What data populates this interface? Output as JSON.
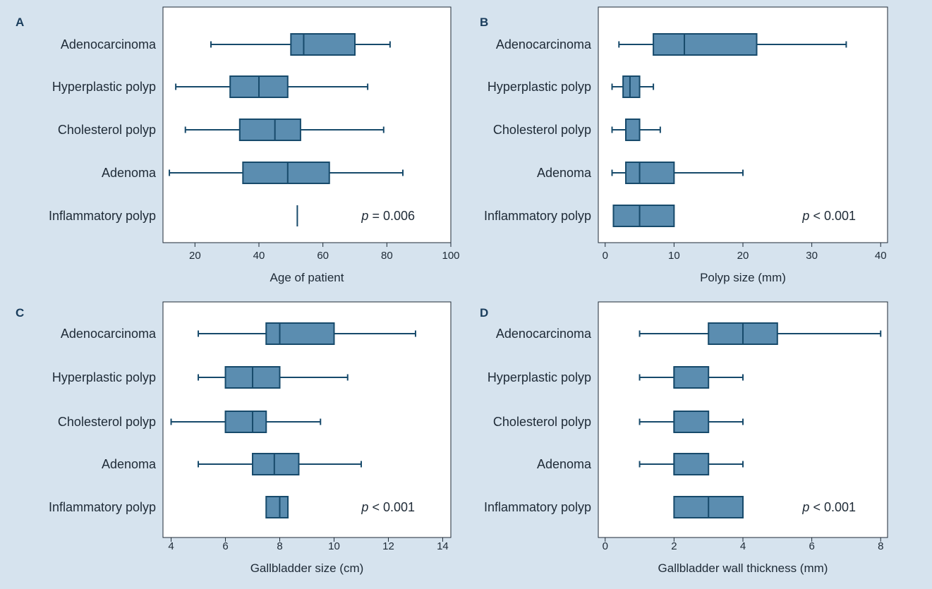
{
  "figure": {
    "background": "#d6e3ee",
    "box_fill": "#5b8db0",
    "stroke_color": "#174a6b"
  },
  "chart_data": [
    {
      "panel": "A",
      "type": "boxplot",
      "orientation": "horizontal",
      "xlabel": "Age of patient",
      "xlim": [
        10,
        100
      ],
      "xticks": [
        20,
        40,
        60,
        80,
        100
      ],
      "annotation": {
        "italic": "p",
        "text": " = 0.006"
      },
      "series": [
        {
          "category": "Adenocarcinoma",
          "min": 25,
          "q1": 50,
          "median": 54,
          "q3": 70,
          "max": 81
        },
        {
          "category": "Hyperplastic polyp",
          "min": 14,
          "q1": 31,
          "median": 40,
          "q3": 49,
          "max": 74
        },
        {
          "category": "Cholesterol polyp",
          "min": 17,
          "q1": 34,
          "median": 45,
          "q3": 53,
          "max": 79
        },
        {
          "category": "Adenoma",
          "min": 12,
          "q1": 35,
          "median": 49,
          "q3": 62,
          "max": 85
        },
        {
          "category": "Inflammatory polyp",
          "min": 52,
          "q1": 52,
          "median": 52,
          "q3": 52,
          "max": 52
        }
      ]
    },
    {
      "panel": "B",
      "type": "boxplot",
      "orientation": "horizontal",
      "xlabel": "Polyp size (mm)",
      "xlim": [
        -1,
        41
      ],
      "xticks": [
        0,
        10,
        20,
        30,
        40
      ],
      "annotation": {
        "italic": "p",
        "text": " < 0.001"
      },
      "series": [
        {
          "category": "Adenocarcinoma",
          "min": 2,
          "q1": 7,
          "median": 11.5,
          "q3": 22,
          "max": 35
        },
        {
          "category": "Hyperplastic polyp",
          "min": 1,
          "q1": 2.6,
          "median": 3.6,
          "q3": 5,
          "max": 7
        },
        {
          "category": "Cholesterol polyp",
          "min": 1,
          "q1": 3,
          "median": 3,
          "q3": 5,
          "max": 8
        },
        {
          "category": "Adenoma",
          "min": 1,
          "q1": 3,
          "median": 5,
          "q3": 10,
          "max": 20
        },
        {
          "category": "Inflammatory polyp",
          "min": 1.2,
          "q1": 1.2,
          "median": 5,
          "q3": 10,
          "max": 10
        }
      ]
    },
    {
      "panel": "C",
      "type": "boxplot",
      "orientation": "horizontal",
      "xlabel": "Gallbladder size (cm)",
      "xlim": [
        3.7,
        14.3
      ],
      "xticks": [
        4,
        6,
        8,
        10,
        12,
        14
      ],
      "annotation": {
        "italic": "p",
        "text": " < 0.001"
      },
      "series": [
        {
          "category": "Adenocarcinoma",
          "min": 5,
          "q1": 7.5,
          "median": 8,
          "q3": 10,
          "max": 13
        },
        {
          "category": "Hyperplastic polyp",
          "min": 5,
          "q1": 6,
          "median": 7,
          "q3": 8,
          "max": 10.5
        },
        {
          "category": "Cholesterol polyp",
          "min": 4,
          "q1": 6,
          "median": 7,
          "q3": 7.5,
          "max": 9.5
        },
        {
          "category": "Adenoma",
          "min": 5,
          "q1": 7,
          "median": 7.8,
          "q3": 8.7,
          "max": 11
        },
        {
          "category": "Inflammatory polyp",
          "min": 7.5,
          "q1": 7.5,
          "median": 8,
          "q3": 8.3,
          "max": 8.3
        }
      ]
    },
    {
      "panel": "D",
      "type": "boxplot",
      "orientation": "horizontal",
      "xlabel": "Gallbladder wall thickness (mm)",
      "xlim": [
        -0.2,
        8.2
      ],
      "xticks": [
        0,
        2,
        4,
        6,
        8
      ],
      "annotation": {
        "italic": "p",
        "text": " < 0.001"
      },
      "series": [
        {
          "category": "Adenocarcinoma",
          "min": 1,
          "q1": 3,
          "median": 4,
          "q3": 5,
          "max": 8
        },
        {
          "category": "Hyperplastic polyp",
          "min": 1,
          "q1": 2,
          "median": 2,
          "q3": 3,
          "max": 4
        },
        {
          "category": "Cholesterol polyp",
          "min": 1,
          "q1": 2,
          "median": 2,
          "q3": 3,
          "max": 4
        },
        {
          "category": "Adenoma",
          "min": 1,
          "q1": 2,
          "median": 2,
          "q3": 3,
          "max": 4
        },
        {
          "category": "Inflammatory polyp",
          "min": 2,
          "q1": 2,
          "median": 3,
          "q3": 4,
          "max": 4
        }
      ]
    }
  ]
}
